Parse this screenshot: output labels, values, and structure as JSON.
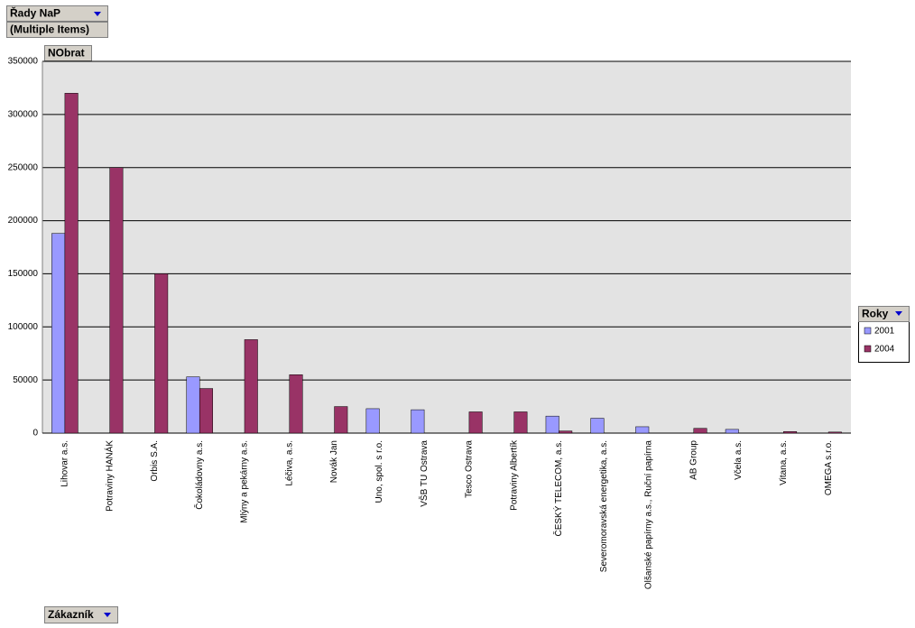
{
  "chart_data": {
    "type": "bar",
    "page_field": "Řady NaP",
    "page_field_value": "(Multiple Items)",
    "data_field": "NObrat",
    "legend_title": "Roky",
    "category_field": "Zákazník",
    "categories": [
      "Lihovar a.s.",
      "Potraviny HANÁK",
      "Orbis S.A.",
      "Čokoládovny a.s.",
      "Mlýny a pekárny a.s.",
      "Léčiva, a.s.",
      "Novák Jan",
      "Uno, spol. s r.o.",
      "VŠB TU Ostrava",
      "Tesco Ostrava",
      "Potraviny Albertík",
      "ČESKÝ TELECOM, a.s.",
      "Severomoravská energetika, a.s.",
      "Olšanské papírny a.s., Ruční papírna",
      "AB Group",
      "Včela a.s.",
      "Vitana, a.s.",
      "OMEGA s.r.o."
    ],
    "series": [
      {
        "name": "2001",
        "color": "#9999ff",
        "values": [
          188000,
          null,
          null,
          53000,
          null,
          null,
          null,
          23000,
          22000,
          null,
          null,
          16000,
          14000,
          6000,
          null,
          3500,
          null,
          null
        ]
      },
      {
        "name": "2004",
        "color": "#993366",
        "values": [
          320000,
          250000,
          150000,
          42000,
          88000,
          55000,
          25000,
          null,
          null,
          20000,
          20000,
          2000,
          null,
          null,
          4500,
          null,
          1500,
          1000
        ]
      }
    ],
    "ylim": [
      0,
      350000
    ],
    "yticks": [
      0,
      50000,
      100000,
      150000,
      200000,
      250000,
      300000,
      350000
    ],
    "grid": true
  }
}
